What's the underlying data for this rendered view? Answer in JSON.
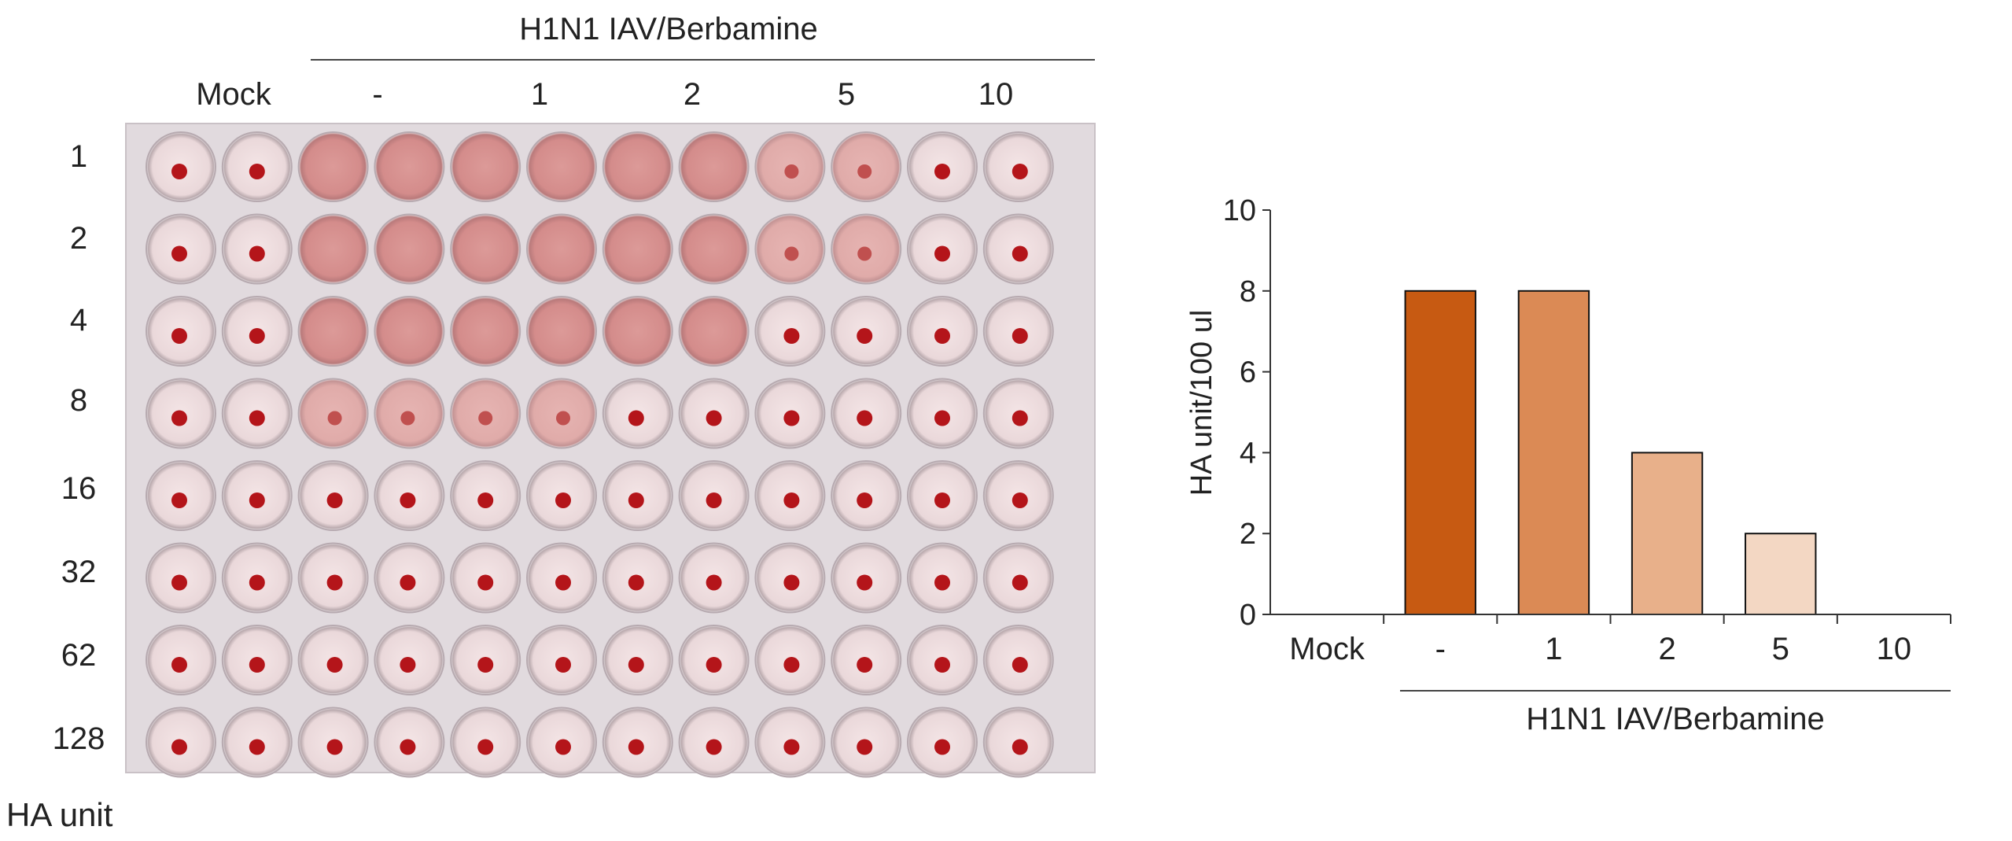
{
  "plate": {
    "group_title": "H1N1 IAV/Berbamine",
    "column_labels": [
      "Mock",
      "-",
      "1",
      "2",
      "5",
      "10"
    ],
    "row_labels": [
      "1",
      "2",
      "4",
      "8",
      "16",
      "32",
      "62",
      "128"
    ],
    "row_axis_label": "HA unit",
    "wells_per_column_group": 2
  },
  "chart_data": {
    "type": "bar",
    "categories": [
      "Mock",
      "-",
      "1",
      "2",
      "5",
      "10"
    ],
    "values": [
      0,
      8,
      8,
      4,
      2,
      0
    ],
    "bar_colors": [
      "#c75a12",
      "#c75a12",
      "#db8a55",
      "#e8b08a",
      "#f3d7c3",
      "#f3d7c3"
    ],
    "group_label": "H1N1 IAV/Berbamine",
    "xlabel": "",
    "ylabel": "HA unit/100 ul",
    "ylim": [
      0,
      10
    ],
    "yticks": [
      "0",
      "2",
      "4",
      "6",
      "8",
      "10"
    ],
    "grid": false
  }
}
